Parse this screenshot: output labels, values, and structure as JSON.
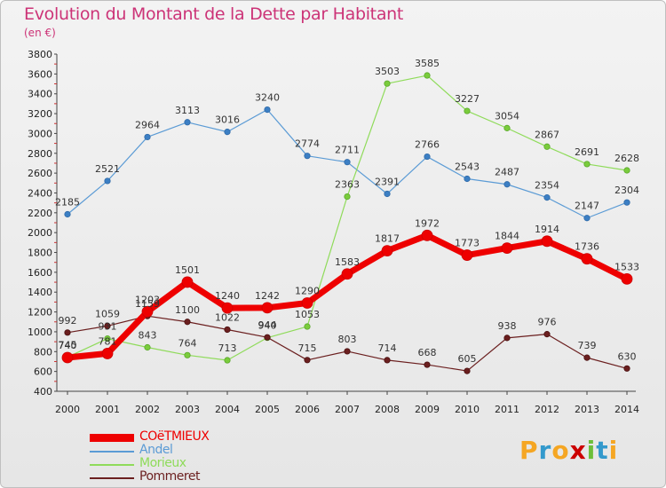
{
  "header": {
    "title": "Evolution du Montant de la Dette par Habitant",
    "unit": "(en €)"
  },
  "logo": {
    "text": "Proxiti",
    "letters": [
      "P",
      "r",
      "o",
      "x",
      "i",
      "t",
      "i"
    ],
    "colors": [
      "#f5a623",
      "#3399cc",
      "#f5a623",
      "#cc0000",
      "#6cbf3a",
      "#3399cc",
      "#f5a623"
    ]
  },
  "chart_data": {
    "type": "line",
    "title": "Evolution du Montant de la Dette par Habitant",
    "ylabel": "(en €)",
    "xlabel": "",
    "x": [
      "2000",
      "2001",
      "2002",
      "2003",
      "2004",
      "2005",
      "2006",
      "2007",
      "2008",
      "2009",
      "2010",
      "2011",
      "2012",
      "2013",
      "2014"
    ],
    "ylim": [
      400,
      3800
    ],
    "yticks": [
      400,
      600,
      800,
      1000,
      1200,
      1400,
      1600,
      1800,
      2000,
      2200,
      2400,
      2600,
      2800,
      3000,
      3200,
      3400,
      3600,
      3800
    ],
    "grid": false,
    "legend_position": "bottom-left",
    "series": [
      {
        "name": "Andel",
        "color": "#5b9bd5",
        "values": [
          2185,
          2521,
          2964,
          3113,
          3016,
          3240,
          2774,
          2711,
          2391,
          2766,
          2543,
          2487,
          2354,
          2147,
          2304
        ]
      },
      {
        "name": "Morieux",
        "color": "#8fdb5a",
        "values": [
          745,
          931,
          843,
          764,
          713,
          940,
          1053,
          2363,
          3503,
          3585,
          3227,
          3054,
          2867,
          2691,
          2628
        ]
      },
      {
        "name": "Pommeret",
        "color": "#6b1f1f",
        "values": [
          992,
          1059,
          1159,
          1100,
          1022,
          944,
          715,
          803,
          714,
          668,
          605,
          938,
          976,
          739,
          630
        ]
      },
      {
        "name": "COëTMIEUX",
        "color": "#ee0000",
        "values": [
          740,
          781,
          1203,
          1501,
          1240,
          1242,
          1290,
          1583,
          1817,
          1972,
          1773,
          1844,
          1914,
          1736,
          1533
        ]
      }
    ]
  }
}
